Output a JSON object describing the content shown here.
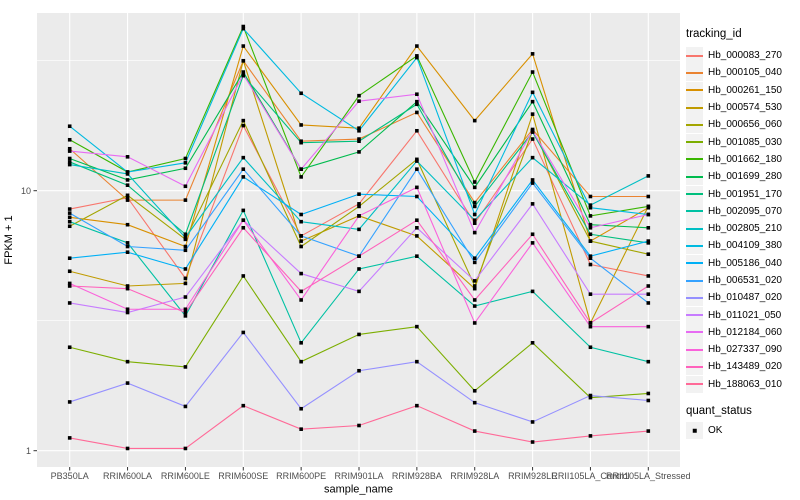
{
  "figure": {
    "legend_title": "tracking_id",
    "quant_legend_title": "quant_status",
    "quant_legend_items": [
      {
        "label": "OK"
      }
    ]
  },
  "colors": {
    "panel_bg": "#EBEBEB",
    "grid": "#FFFFFF",
    "tick_mark": "#333333",
    "tick_text": "#4D4D4D",
    "legend_key_bg": "#F2F2F2",
    "point": "#000000"
  },
  "chart_data": {
    "type": "line",
    "title": "",
    "xlabel": "sample_name",
    "ylabel": "FPKM + 1",
    "y_scale": "log10",
    "ylim": [
      0.87,
      48
    ],
    "y_major_ticks": [
      10,
      1
    ],
    "y_tick_labels": [
      "10",
      "1"
    ],
    "y_minor_gridlines": [
      31.62,
      3.162
    ],
    "grid": true,
    "legend_position": "right",
    "point_shape": "black-square",
    "categories": [
      "PB350LA",
      "RRIM600LA",
      "RRIM600LE",
      "RRIM600SE",
      "RRIM600PE",
      "RRIM901LA",
      "RRIM928BA",
      "RRIM928LA",
      "RRIM928LE",
      "RRII105LA_Control",
      "RRII105LA_Stressed"
    ],
    "series": [
      {
        "name": "Hb_000083_270",
        "color": "#F8766D",
        "values": [
          8.5,
          9.4,
          4.6,
          17.8,
          6.7,
          8.9,
          17.0,
          7.5,
          15.8,
          5.2,
          4.7
        ]
      },
      {
        "name": "Hb_000105_040",
        "color": "#EA8331",
        "values": [
          14.5,
          9.2,
          9.2,
          31.6,
          15.5,
          15.8,
          20.0,
          9.0,
          17.2,
          9.5,
          9.5
        ]
      },
      {
        "name": "Hb_000261_150",
        "color": "#D89000",
        "values": [
          7.9,
          7.4,
          6.1,
          36.0,
          17.9,
          17.4,
          36.0,
          18.6,
          33.6,
          6.4,
          8.6
        ]
      },
      {
        "name": "Hb_000574_530",
        "color": "#C09B00",
        "values": [
          4.9,
          4.3,
          4.4,
          31.6,
          6.4,
          8.0,
          6.7,
          4.2,
          19.7,
          3.1,
          8.7
        ]
      },
      {
        "name": "Hb_000656_060",
        "color": "#A3A500",
        "values": [
          7.3,
          9.6,
          6.5,
          18.6,
          6.1,
          8.7,
          13.2,
          4.3,
          17.0,
          6.4,
          5.7
        ]
      },
      {
        "name": "Hb_001085_030",
        "color": "#7CAE00",
        "values": [
          2.5,
          2.2,
          2.1,
          4.7,
          2.2,
          2.8,
          3.0,
          1.7,
          2.6,
          1.6,
          1.66
        ]
      },
      {
        "name": "Hb_001662_180",
        "color": "#39B600",
        "values": [
          15.7,
          11.8,
          13.3,
          42.8,
          11.3,
          23.2,
          33.0,
          10.8,
          28.6,
          8.0,
          8.7
        ]
      },
      {
        "name": "Hb_001699_280",
        "color": "#00BB4E",
        "values": [
          13.3,
          11.0,
          12.2,
          28.6,
          12.1,
          14.1,
          22.0,
          10.3,
          22.0,
          7.4,
          7.2
        ]
      },
      {
        "name": "Hb_001951_170",
        "color": "#00BF7D",
        "values": [
          12.9,
          10.5,
          6.8,
          27.7,
          15.3,
          15.5,
          21.5,
          8.7,
          16.8,
          6.8,
          6.3
        ]
      },
      {
        "name": "Hb_002095_070",
        "color": "#00C1A3",
        "values": [
          7.6,
          6.3,
          3.3,
          8.4,
          2.6,
          5.0,
          5.6,
          3.6,
          4.1,
          2.5,
          2.2
        ]
      },
      {
        "name": "Hb_002805_210",
        "color": "#00BFC4",
        "values": [
          12.6,
          11.6,
          6.6,
          13.4,
          7.6,
          7.1,
          13.0,
          7.7,
          13.4,
          8.8,
          11.4
        ]
      },
      {
        "name": "Hb_004109_380",
        "color": "#00BAE0",
        "values": [
          17.7,
          11.8,
          12.8,
          42.0,
          23.7,
          17.0,
          32.5,
          8.1,
          23.9,
          8.6,
          8.1
        ]
      },
      {
        "name": "Hb_005186_040",
        "color": "#00B0F6",
        "values": [
          5.5,
          5.8,
          5.0,
          11.3,
          8.1,
          9.7,
          9.5,
          5.5,
          11.0,
          5.6,
          6.4
        ]
      },
      {
        "name": "Hb_006531_020",
        "color": "#35A2FF",
        "values": [
          8.2,
          6.1,
          5.9,
          12.1,
          6.7,
          5.6,
          12.1,
          5.3,
          10.7,
          5.5,
          3.7
        ]
      },
      {
        "name": "Hb_010487_020",
        "color": "#9590FF",
        "values": [
          1.54,
          1.82,
          1.48,
          2.85,
          1.45,
          2.03,
          2.2,
          1.53,
          1.29,
          1.63,
          1.56
        ]
      },
      {
        "name": "Hb_011021_050",
        "color": "#C77CFF",
        "values": [
          3.7,
          3.4,
          3.9,
          7.7,
          4.8,
          4.1,
          7.2,
          4.5,
          8.9,
          4.0,
          4.0
        ]
      },
      {
        "name": "Hb_012184_060",
        "color": "#E76BF3",
        "values": [
          14.2,
          13.5,
          10.4,
          28.0,
          12.1,
          22.1,
          23.5,
          6.9,
          17.0,
          7.2,
          8.1
        ]
      },
      {
        "name": "Hb_027337_090",
        "color": "#FA62DB",
        "values": [
          4.4,
          3.5,
          3.5,
          7.7,
          3.8,
          8.0,
          10.3,
          3.1,
          6.3,
          3.0,
          3.0
        ]
      },
      {
        "name": "Hb_143489_020",
        "color": "#FF62BC",
        "values": [
          4.3,
          4.2,
          3.4,
          7.2,
          4.1,
          5.6,
          7.7,
          3.8,
          6.8,
          3.1,
          4.3
        ]
      },
      {
        "name": "Hb_188063_010",
        "color": "#FF6A98",
        "values": [
          1.12,
          1.02,
          1.02,
          1.49,
          1.21,
          1.25,
          1.49,
          1.19,
          1.08,
          1.14,
          1.19
        ]
      }
    ]
  }
}
